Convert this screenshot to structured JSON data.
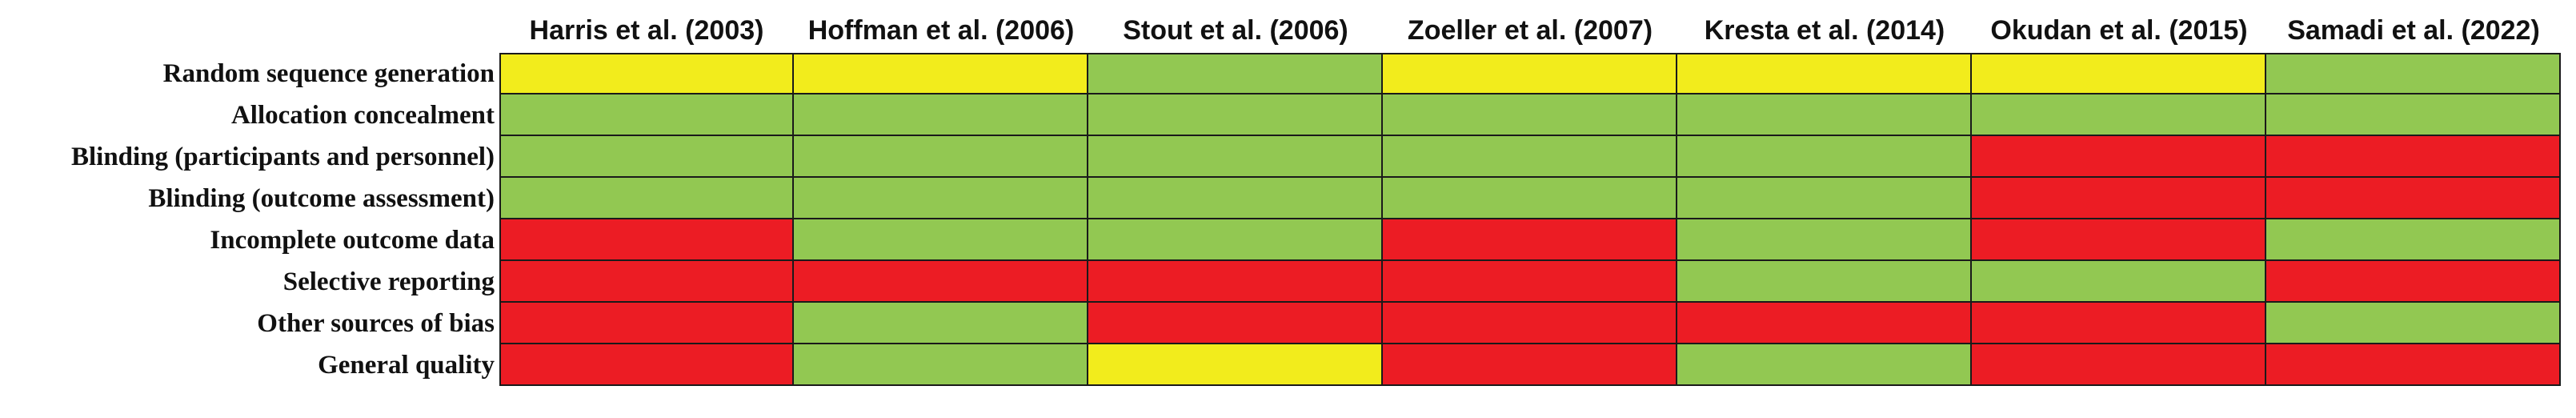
{
  "colors": {
    "yellow": "#f2ec1c",
    "green": "#92c852",
    "red": "#ec1c24"
  },
  "studies": [
    "Harris et al. (2003)",
    "Hoffman et al. (2006)",
    "Stout et al. (2006)",
    "Zoeller et al. (2007)",
    "Kresta et al. (2014)",
    "Okudan et al. (2015)",
    "Samadi et al. (2022)"
  ],
  "domains": [
    "Random sequence generation",
    "Allocation concealment",
    "Blinding (participants and personnel)",
    "Blinding (outcome assessment)",
    "Incomplete outcome data",
    "Selective reporting",
    "Other sources of bias",
    "General quality"
  ],
  "ratings": [
    [
      "yellow",
      "yellow",
      "green",
      "yellow",
      "yellow",
      "yellow",
      "green"
    ],
    [
      "green",
      "green",
      "green",
      "green",
      "green",
      "green",
      "green"
    ],
    [
      "green",
      "green",
      "green",
      "green",
      "green",
      "red",
      "red"
    ],
    [
      "green",
      "green",
      "green",
      "green",
      "green",
      "red",
      "red"
    ],
    [
      "red",
      "green",
      "green",
      "red",
      "green",
      "red",
      "green"
    ],
    [
      "red",
      "red",
      "red",
      "red",
      "green",
      "green",
      "red"
    ],
    [
      "red",
      "green",
      "red",
      "red",
      "red",
      "red",
      "green"
    ],
    [
      "red",
      "green",
      "yellow",
      "red",
      "green",
      "red",
      "red"
    ]
  ]
}
